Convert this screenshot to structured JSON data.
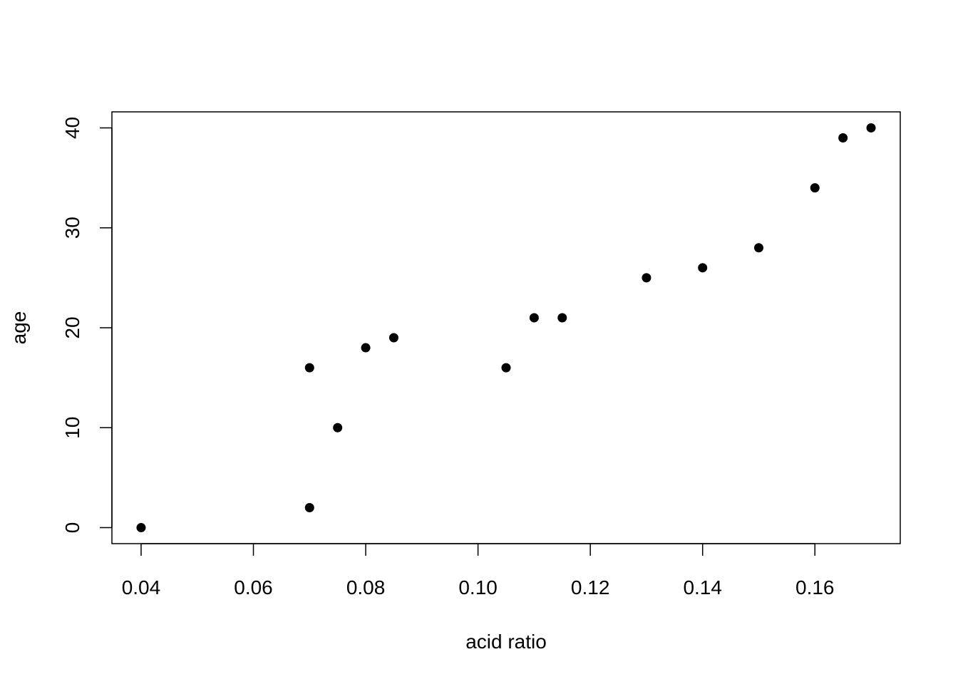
{
  "chart_data": {
    "type": "scatter",
    "title": "",
    "xlabel": "acid ratio",
    "ylabel": "age",
    "xlim": [
      0.0348,
      0.1752
    ],
    "ylim": [
      -1.6,
      41.6
    ],
    "x_ticks": [
      0.04,
      0.06,
      0.08,
      0.1,
      0.12,
      0.14,
      0.16
    ],
    "x_tick_labels": [
      "0.04",
      "0.06",
      "0.08",
      "0.10",
      "0.12",
      "0.14",
      "0.16"
    ],
    "y_ticks": [
      0,
      10,
      20,
      30,
      40
    ],
    "y_tick_labels": [
      "0",
      "10",
      "20",
      "30",
      "40"
    ],
    "grid": false,
    "marker_color": "#000000",
    "points": [
      {
        "x": 0.04,
        "y": 0
      },
      {
        "x": 0.07,
        "y": 16
      },
      {
        "x": 0.07,
        "y": 2
      },
      {
        "x": 0.075,
        "y": 10
      },
      {
        "x": 0.08,
        "y": 18
      },
      {
        "x": 0.085,
        "y": 19
      },
      {
        "x": 0.105,
        "y": 16
      },
      {
        "x": 0.11,
        "y": 21
      },
      {
        "x": 0.115,
        "y": 21
      },
      {
        "x": 0.13,
        "y": 25
      },
      {
        "x": 0.14,
        "y": 26
      },
      {
        "x": 0.15,
        "y": 28
      },
      {
        "x": 0.16,
        "y": 34
      },
      {
        "x": 0.165,
        "y": 39
      },
      {
        "x": 0.17,
        "y": 40
      }
    ]
  }
}
